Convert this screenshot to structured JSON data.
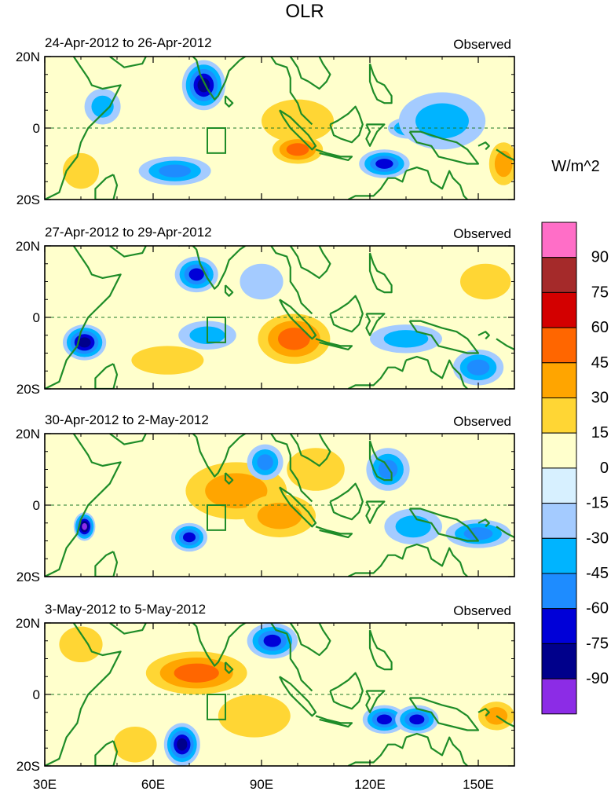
{
  "chart_data": {
    "type": "heatmap",
    "title": "OLR",
    "units": "W/m^2",
    "x_axis": {
      "ticks": [
        "30E",
        "60E",
        "90E",
        "120E",
        "150E"
      ],
      "tick_values": [
        30,
        60,
        90,
        120,
        150
      ],
      "range": [
        30,
        160
      ]
    },
    "y_axis": {
      "ticks": [
        "20N",
        "0",
        "20S"
      ],
      "tick_values": [
        20,
        0,
        -20
      ],
      "range": [
        -20,
        20
      ]
    },
    "equator_line": "dashed",
    "box_region": {
      "lon": [
        75,
        80
      ],
      "lat": [
        -7,
        0
      ]
    },
    "colorbar": {
      "labels": [
        "90",
        "75",
        "60",
        "45",
        "30",
        "15",
        "0",
        "-15",
        "-30",
        "-45",
        "-60",
        "-75",
        "-90"
      ],
      "levels": [
        90,
        75,
        60,
        45,
        30,
        15,
        0,
        -15,
        -30,
        -45,
        -60,
        -75,
        -90
      ],
      "colors": [
        "#ff6ec7",
        "#a52a2a",
        "#d30000",
        "#ff6600",
        "#ffa500",
        "#ffd634",
        "#ffffcc",
        "#d7f0ff",
        "#a4cbff",
        "#00b4ff",
        "#1e8cff",
        "#0000d8",
        "#00008b",
        "#8c2ce6"
      ]
    },
    "panels": [
      {
        "date_range": "24-Apr-2012 to 26-Apr-2012",
        "label": "Observed",
        "features": [
          {
            "lon": 74,
            "lat": 12,
            "rx": 6,
            "ry": 7,
            "value": -75
          },
          {
            "lon": 66,
            "lat": -12,
            "rx": 10,
            "ry": 4,
            "value": -45
          },
          {
            "lon": 46,
            "lat": 6,
            "rx": 5,
            "ry": 5,
            "value": -40
          },
          {
            "lon": 100,
            "lat": 2,
            "rx": 10,
            "ry": 6,
            "value": 25
          },
          {
            "lon": 100,
            "lat": -6,
            "rx": 7,
            "ry": 4,
            "value": 45
          },
          {
            "lon": 124,
            "lat": -10,
            "rx": 7,
            "ry": 4,
            "value": -60
          },
          {
            "lon": 131,
            "lat": 0,
            "rx": 6,
            "ry": 3,
            "value": -55
          },
          {
            "lon": 140,
            "lat": 2,
            "rx": 12,
            "ry": 8,
            "value": -35
          },
          {
            "lon": 157,
            "lat": -10,
            "rx": 4,
            "ry": 6,
            "value": 40
          },
          {
            "lon": 40,
            "lat": -12,
            "rx": 5,
            "ry": 5,
            "value": 20
          }
        ]
      },
      {
        "date_range": "27-Apr-2012 to 29-Apr-2012",
        "label": "Observed",
        "features": [
          {
            "lon": 72,
            "lat": 12,
            "rx": 6,
            "ry": 5,
            "value": -60
          },
          {
            "lon": 41,
            "lat": -7,
            "rx": 6,
            "ry": 5,
            "value": -75
          },
          {
            "lon": 99,
            "lat": -6,
            "rx": 10,
            "ry": 7,
            "value": 45
          },
          {
            "lon": 75,
            "lat": -5,
            "rx": 8,
            "ry": 4,
            "value": -40
          },
          {
            "lon": 130,
            "lat": -6,
            "rx": 10,
            "ry": 4,
            "value": -40
          },
          {
            "lon": 150,
            "lat": -14,
            "rx": 7,
            "ry": 5,
            "value": -45
          },
          {
            "lon": 64,
            "lat": -12,
            "rx": 10,
            "ry": 4,
            "value": 20
          },
          {
            "lon": 152,
            "lat": 10,
            "rx": 7,
            "ry": 5,
            "value": 20
          },
          {
            "lon": 90,
            "lat": 10,
            "rx": 6,
            "ry": 5,
            "value": -25
          }
        ]
      },
      {
        "date_range": "30-Apr-2012 to 2-May-2012",
        "label": "Observed",
        "features": [
          {
            "lon": 83,
            "lat": 4,
            "rx": 14,
            "ry": 8,
            "value": 40
          },
          {
            "lon": 95,
            "lat": -3,
            "rx": 10,
            "ry": 6,
            "value": 35
          },
          {
            "lon": 41,
            "lat": -6,
            "rx": 3,
            "ry": 4,
            "value": -90
          },
          {
            "lon": 70,
            "lat": -9,
            "rx": 5,
            "ry": 4,
            "value": -65
          },
          {
            "lon": 91,
            "lat": 12,
            "rx": 5,
            "ry": 5,
            "value": -55
          },
          {
            "lon": 125,
            "lat": 10,
            "rx": 6,
            "ry": 6,
            "value": -45
          },
          {
            "lon": 150,
            "lat": -8,
            "rx": 9,
            "ry": 4,
            "value": -55
          },
          {
            "lon": 105,
            "lat": 10,
            "rx": 8,
            "ry": 6,
            "value": 20
          },
          {
            "lon": 132,
            "lat": -6,
            "rx": 8,
            "ry": 5,
            "value": -30
          }
        ]
      },
      {
        "date_range": "3-May-2012 to 5-May-2012",
        "label": "Observed",
        "features": [
          {
            "lon": 72,
            "lat": 6,
            "rx": 14,
            "ry": 6,
            "value": 45
          },
          {
            "lon": 68,
            "lat": -14,
            "rx": 5,
            "ry": 6,
            "value": -75
          },
          {
            "lon": 93,
            "lat": 15,
            "rx": 7,
            "ry": 5,
            "value": -70
          },
          {
            "lon": 124,
            "lat": -7,
            "rx": 6,
            "ry": 4,
            "value": -65
          },
          {
            "lon": 133,
            "lat": -7,
            "rx": 6,
            "ry": 4,
            "value": -60
          },
          {
            "lon": 88,
            "lat": -6,
            "rx": 10,
            "ry": 6,
            "value": 25
          },
          {
            "lon": 155,
            "lat": -6,
            "rx": 5,
            "ry": 4,
            "value": 35
          },
          {
            "lon": 40,
            "lat": 14,
            "rx": 6,
            "ry": 5,
            "value": 20
          },
          {
            "lon": 55,
            "lat": -14,
            "rx": 6,
            "ry": 5,
            "value": 15
          }
        ]
      }
    ]
  }
}
